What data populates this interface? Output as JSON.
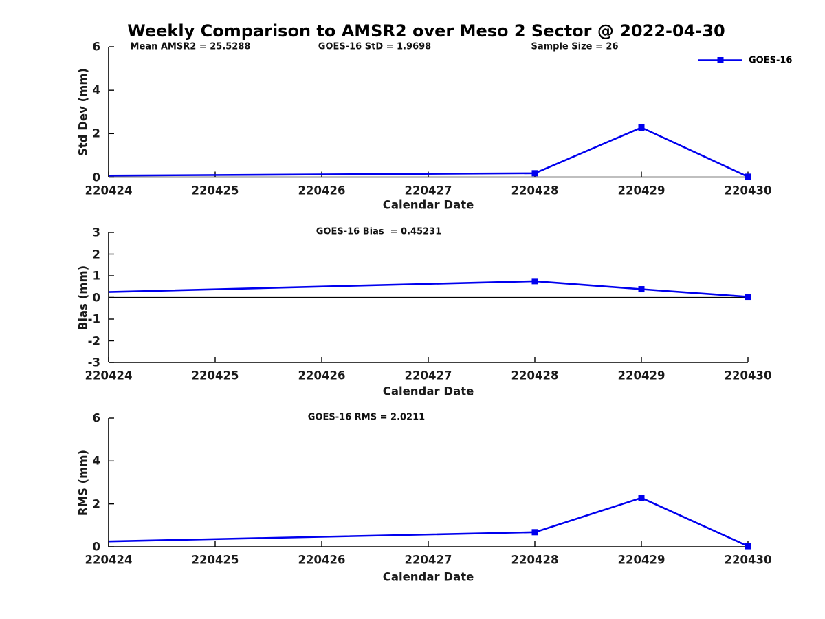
{
  "title": "Weekly Comparison to AMSR2 over Meso 2 Sector @ 2022-04-30",
  "colors": {
    "line": "#0000EE",
    "axis": "#000000",
    "tick_text": "#1a1a1a"
  },
  "chart_data": [
    {
      "type": "line",
      "name": "std-dev",
      "ylabel": "Std Dev (mm)",
      "xlabel": "Calendar Date",
      "ylim": [
        0,
        6
      ],
      "yticklabels": [
        "0",
        "2",
        "4",
        "6"
      ],
      "yticks": [
        0,
        2,
        4,
        6
      ],
      "xticklabels": [
        "220424",
        "220425",
        "220426",
        "220427",
        "220428",
        "220429",
        "220430"
      ],
      "grid": false,
      "zero_line": false,
      "annotations": [
        {
          "text": "Mean AMSR2 = 25.5288",
          "x": 277
        },
        {
          "text": "GOES-16 StD = 1.9698",
          "x": 545
        },
        {
          "text": "Sample Size = 26",
          "x": 836
        }
      ],
      "legend": {
        "visible": true,
        "label": "GOES-16",
        "position": "top-right-inside"
      },
      "series": [
        {
          "name": "GOES-16",
          "color": "#0000EE",
          "marker": "square",
          "points": [
            {
              "x": "220424",
              "y": 0.07,
              "marker": false
            },
            {
              "x": "220428",
              "y": 0.18,
              "marker": true
            },
            {
              "x": "220429",
              "y": 2.28,
              "marker": true
            },
            {
              "x": "220430",
              "y": 0.02,
              "marker": true
            }
          ]
        }
      ]
    },
    {
      "type": "line",
      "name": "bias",
      "ylabel": "Bias (mm)",
      "xlabel": "Calendar Date",
      "ylim": [
        -3,
        3
      ],
      "yticklabels": [
        "3",
        "2",
        "1",
        "0",
        "-1",
        "-2",
        "-3"
      ],
      "yticks": [
        3,
        2,
        1,
        0,
        -1,
        -2,
        -3
      ],
      "xticklabels": [
        "220424",
        "220425",
        "220426",
        "220427",
        "220428",
        "220429",
        "220430"
      ],
      "grid": false,
      "zero_line": true,
      "annotations": [
        {
          "text": "GOES-16 Bias  = 0.45231",
          "x": 551
        }
      ],
      "legend": {
        "visible": false,
        "label": ""
      },
      "series": [
        {
          "name": "GOES-16",
          "color": "#0000EE",
          "marker": "square",
          "points": [
            {
              "x": "220424",
              "y": 0.25,
              "marker": false
            },
            {
              "x": "220428",
              "y": 0.75,
              "marker": true
            },
            {
              "x": "220429",
              "y": 0.38,
              "marker": true
            },
            {
              "x": "220430",
              "y": 0.03,
              "marker": true
            }
          ]
        }
      ]
    },
    {
      "type": "line",
      "name": "rms",
      "ylabel": "RMS (mm)",
      "xlabel": "Calendar Date",
      "ylim": [
        0,
        6
      ],
      "yticklabels": [
        "0",
        "2",
        "4",
        "6"
      ],
      "yticks": [
        0,
        2,
        4,
        6
      ],
      "xticklabels": [
        "220424",
        "220425",
        "220426",
        "220427",
        "220428",
        "220429",
        "220430"
      ],
      "grid": false,
      "zero_line": false,
      "annotations": [
        {
          "text": "GOES-16 RMS = 2.0211",
          "x": 533
        }
      ],
      "legend": {
        "visible": false,
        "label": ""
      },
      "series": [
        {
          "name": "GOES-16",
          "color": "#0000EE",
          "marker": "square",
          "points": [
            {
              "x": "220424",
              "y": 0.25,
              "marker": false
            },
            {
              "x": "220428",
              "y": 0.68,
              "marker": true
            },
            {
              "x": "220429",
              "y": 2.28,
              "marker": true
            },
            {
              "x": "220430",
              "y": 0.03,
              "marker": true
            }
          ]
        }
      ]
    }
  ]
}
